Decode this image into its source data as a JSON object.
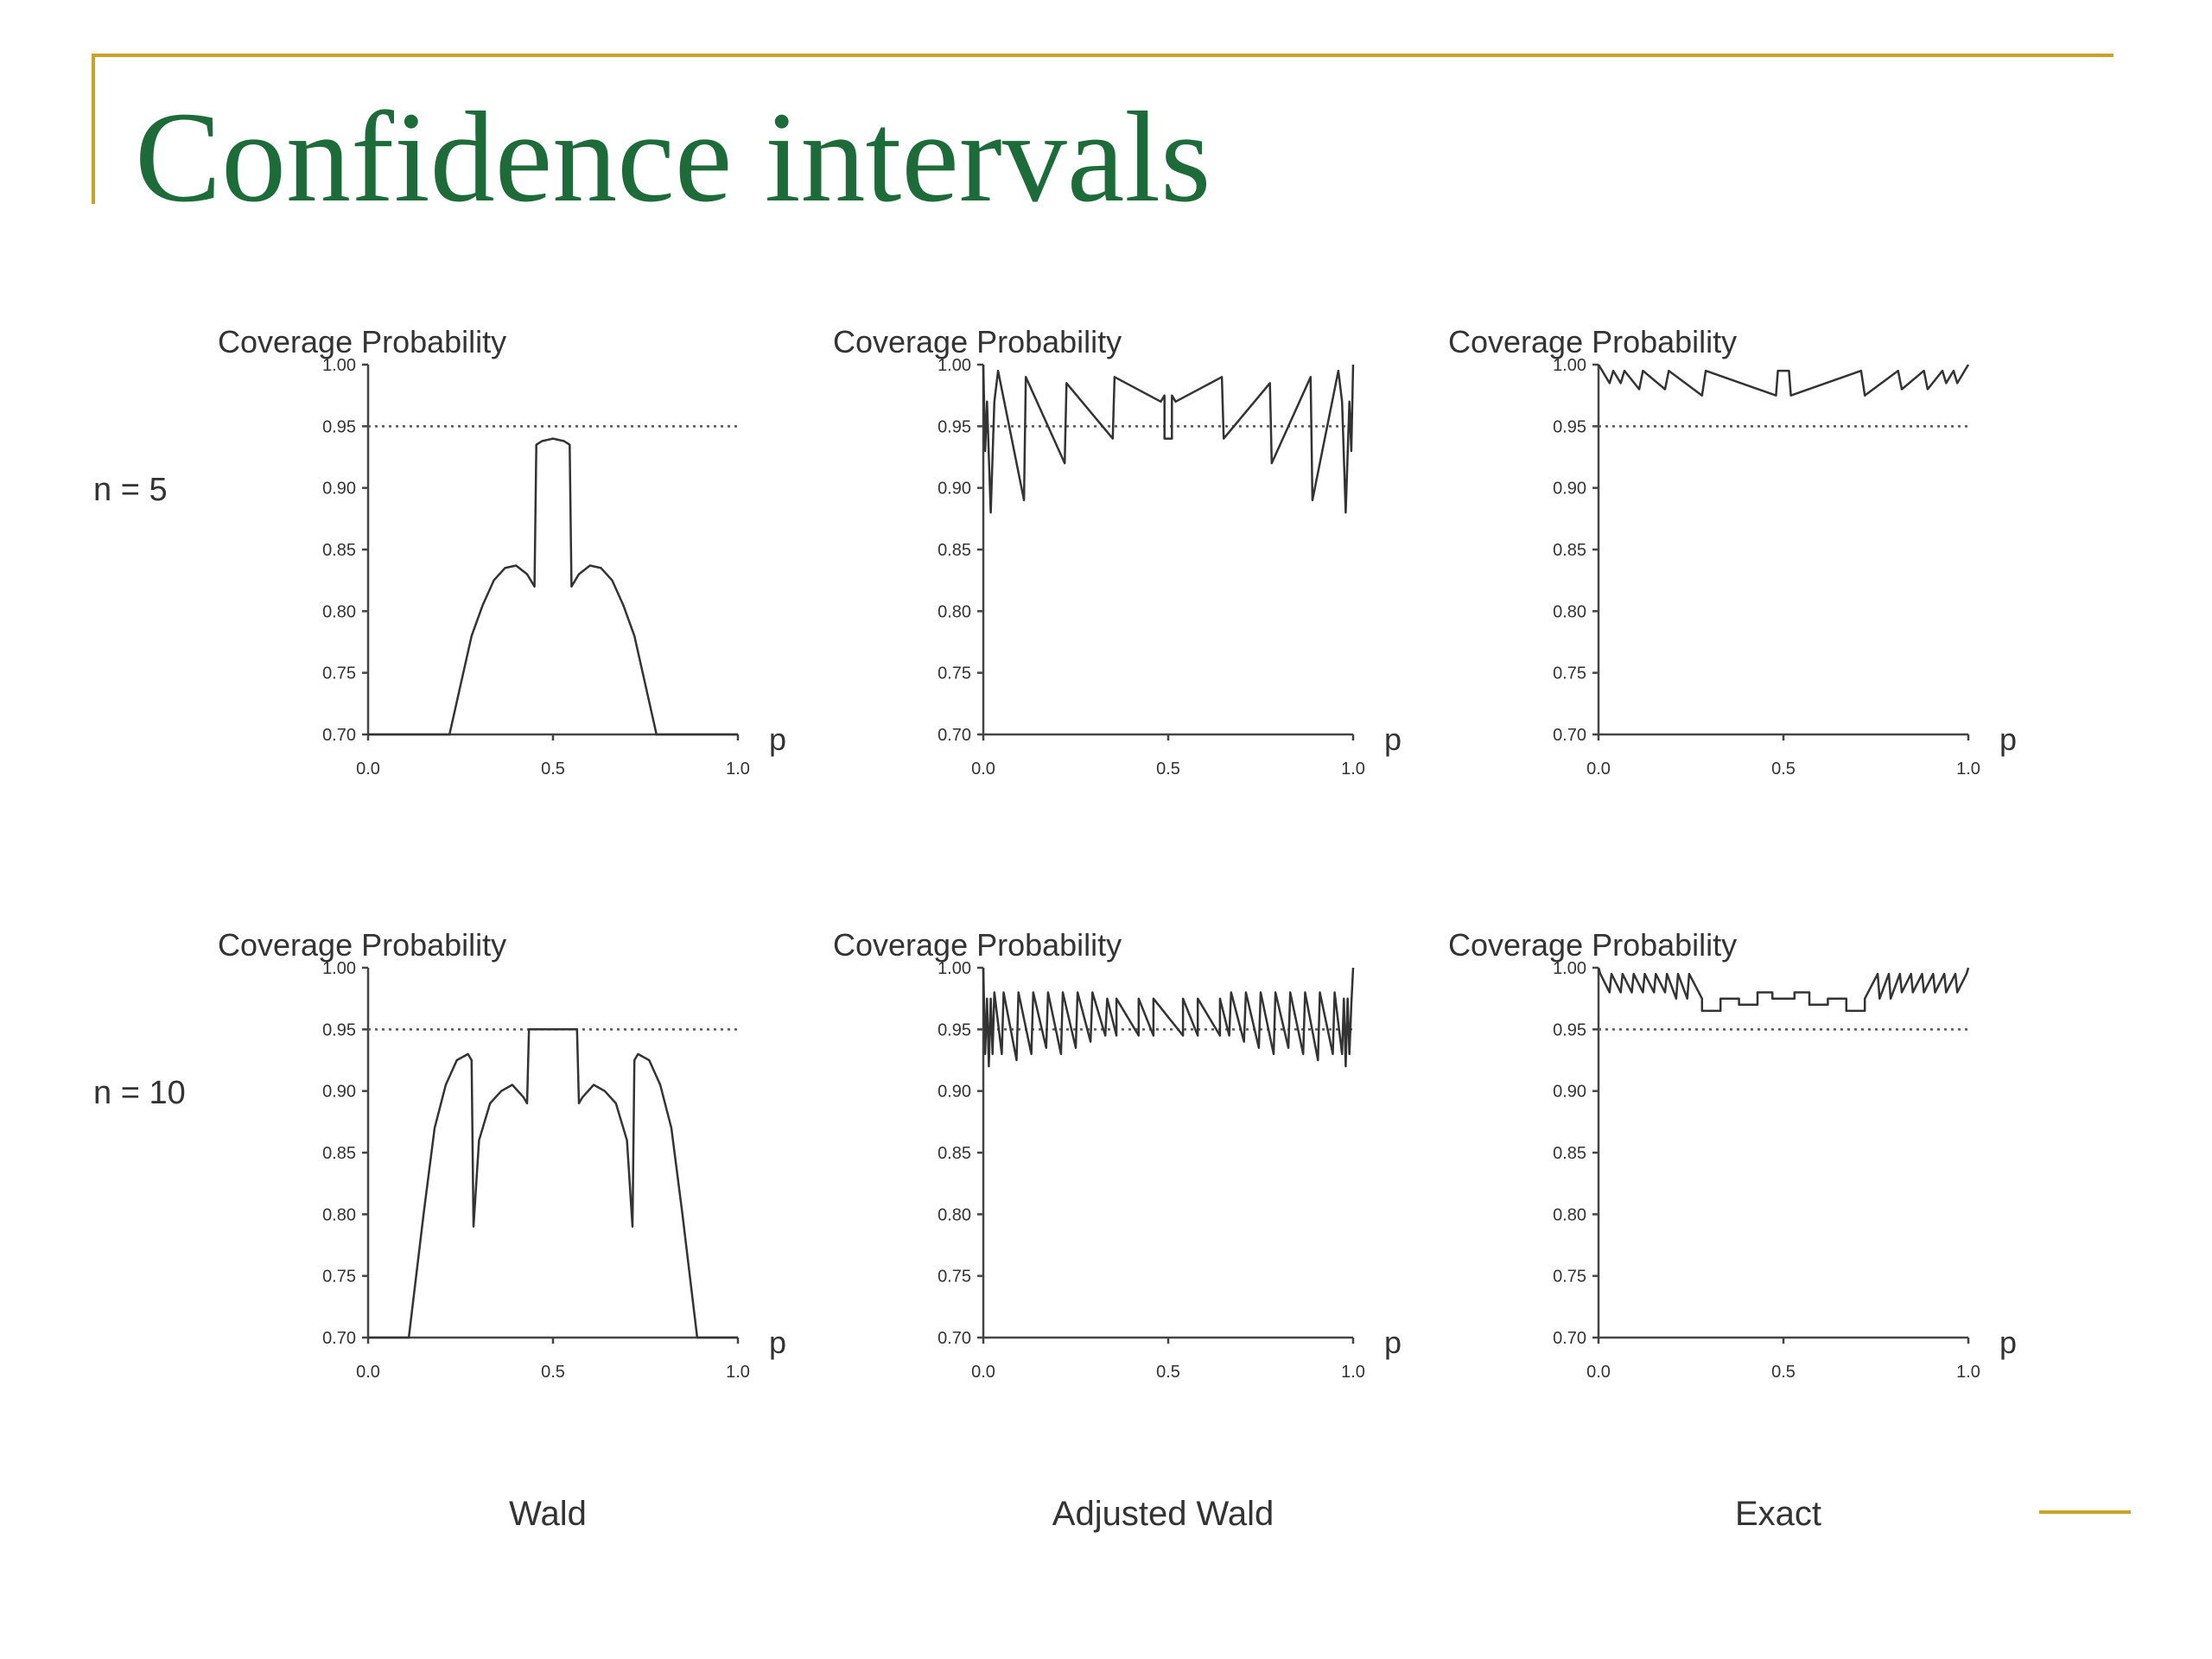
{
  "title": "Confidence intervals",
  "row_labels": [
    "n = 5",
    "n = 10"
  ],
  "column_labels": [
    "Wald",
    "Adjusted Wald",
    "Exact"
  ],
  "colors": {
    "title": "#1e6b3a",
    "rule": "#c9a227",
    "ink": "#333333"
  },
  "chart_data": [
    {
      "type": "line",
      "row": "n = 5",
      "column": "Wald",
      "title": "Coverage Probability",
      "xlabel": "p",
      "xlim": [
        0,
        1
      ],
      "ylim": [
        0.7,
        1.0
      ],
      "xticks": [
        "0.0",
        "0.5",
        "1.0"
      ],
      "yticks": [
        "1.00",
        "0.95",
        "0.90",
        "0.85",
        "0.80",
        "0.75",
        "0.70"
      ],
      "reference_line": 0.95,
      "x": [
        0.0,
        0.22,
        0.25,
        0.28,
        0.31,
        0.34,
        0.37,
        0.4,
        0.43,
        0.45,
        0.455,
        0.47,
        0.5,
        0.53,
        0.545,
        0.55,
        0.57,
        0.6,
        0.63,
        0.66,
        0.69,
        0.72,
        0.75,
        0.78,
        1.0
      ],
      "y": [
        0.7,
        0.7,
        0.74,
        0.78,
        0.805,
        0.825,
        0.835,
        0.837,
        0.83,
        0.82,
        0.935,
        0.938,
        0.94,
        0.938,
        0.935,
        0.82,
        0.83,
        0.837,
        0.835,
        0.825,
        0.805,
        0.78,
        0.74,
        0.7,
        0.7
      ]
    },
    {
      "type": "line",
      "row": "n = 5",
      "column": "Adjusted Wald",
      "title": "Coverage Probability",
      "xlabel": "p",
      "xlim": [
        0,
        1
      ],
      "ylim": [
        0.7,
        1.0
      ],
      "xticks": [
        "0.0",
        "0.5",
        "1.0"
      ],
      "yticks": [
        "1.00",
        "0.95",
        "0.90",
        "0.85",
        "0.80",
        "0.75",
        "0.70"
      ],
      "reference_line": 0.95,
      "x": [
        0.0,
        0.005,
        0.01,
        0.02,
        0.03,
        0.04,
        0.11,
        0.115,
        0.22,
        0.225,
        0.35,
        0.355,
        0.48,
        0.49,
        0.49,
        0.51,
        0.51,
        0.52,
        0.645,
        0.65,
        0.775,
        0.78,
        0.885,
        0.89,
        0.96,
        0.97,
        0.98,
        0.99,
        0.995,
        1.0
      ],
      "y": [
        1.0,
        0.93,
        0.97,
        0.88,
        0.97,
        0.995,
        0.89,
        0.99,
        0.92,
        0.985,
        0.94,
        0.99,
        0.97,
        0.975,
        0.94,
        0.94,
        0.975,
        0.97,
        0.99,
        0.94,
        0.985,
        0.92,
        0.99,
        0.89,
        0.995,
        0.97,
        0.88,
        0.97,
        0.93,
        1.0
      ]
    },
    {
      "type": "line",
      "row": "n = 5",
      "column": "Exact",
      "title": "Coverage Probability",
      "xlabel": "p",
      "xlim": [
        0,
        1
      ],
      "ylim": [
        0.7,
        1.0
      ],
      "xticks": [
        "0.0",
        "0.5",
        "1.0"
      ],
      "yticks": [
        "1.00",
        "0.95",
        "0.90",
        "0.85",
        "0.80",
        "0.75",
        "0.70"
      ],
      "reference_line": 0.95,
      "x": [
        0.0,
        0.01,
        0.03,
        0.04,
        0.06,
        0.07,
        0.11,
        0.12,
        0.18,
        0.19,
        0.28,
        0.29,
        0.48,
        0.485,
        0.515,
        0.52,
        0.71,
        0.72,
        0.81,
        0.82,
        0.88,
        0.89,
        0.93,
        0.94,
        0.96,
        0.97,
        0.99,
        1.0
      ],
      "y": [
        1.0,
        0.995,
        0.985,
        0.995,
        0.985,
        0.995,
        0.98,
        0.995,
        0.98,
        0.995,
        0.975,
        0.995,
        0.975,
        0.995,
        0.995,
        0.975,
        0.995,
        0.975,
        0.995,
        0.98,
        0.995,
        0.98,
        0.995,
        0.985,
        0.995,
        0.985,
        0.995,
        1.0
      ]
    },
    {
      "type": "line",
      "row": "n = 10",
      "column": "Wald",
      "title": "Coverage Probability",
      "xlabel": "p",
      "xlim": [
        0,
        1
      ],
      "ylim": [
        0.7,
        1.0
      ],
      "xticks": [
        "0.0",
        "0.5",
        "1.0"
      ],
      "yticks": [
        "1.00",
        "0.95",
        "0.90",
        "0.85",
        "0.80",
        "0.75",
        "0.70"
      ],
      "reference_line": 0.95,
      "x": [
        0.0,
        0.11,
        0.15,
        0.18,
        0.21,
        0.24,
        0.27,
        0.28,
        0.285,
        0.3,
        0.33,
        0.36,
        0.39,
        0.42,
        0.43,
        0.435,
        0.46,
        0.5,
        0.54,
        0.565,
        0.57,
        0.58,
        0.61,
        0.64,
        0.67,
        0.7,
        0.715,
        0.72,
        0.73,
        0.76,
        0.79,
        0.82,
        0.85,
        0.89,
        1.0
      ],
      "y": [
        0.7,
        0.7,
        0.8,
        0.87,
        0.905,
        0.925,
        0.93,
        0.925,
        0.79,
        0.86,
        0.89,
        0.9,
        0.905,
        0.895,
        0.89,
        0.95,
        0.95,
        0.95,
        0.95,
        0.95,
        0.89,
        0.895,
        0.905,
        0.9,
        0.89,
        0.86,
        0.79,
        0.925,
        0.93,
        0.925,
        0.905,
        0.87,
        0.8,
        0.7,
        0.7
      ]
    },
    {
      "type": "line",
      "row": "n = 10",
      "column": "Adjusted Wald",
      "title": "Coverage Probability",
      "xlabel": "p",
      "xlim": [
        0,
        1
      ],
      "ylim": [
        0.7,
        1.0
      ],
      "xticks": [
        "0.0",
        "0.5",
        "1.0"
      ],
      "yticks": [
        "1.00",
        "0.95",
        "0.90",
        "0.85",
        "0.80",
        "0.75",
        "0.70"
      ],
      "reference_line": 0.95,
      "x": [
        0.0,
        0.005,
        0.01,
        0.015,
        0.02,
        0.025,
        0.03,
        0.05,
        0.055,
        0.09,
        0.095,
        0.13,
        0.135,
        0.17,
        0.175,
        0.21,
        0.215,
        0.25,
        0.255,
        0.29,
        0.295,
        0.33,
        0.335,
        0.36,
        0.36,
        0.42,
        0.42,
        0.46,
        0.46,
        0.54,
        0.54,
        0.58,
        0.58,
        0.64,
        0.64,
        0.665,
        0.67,
        0.705,
        0.71,
        0.745,
        0.75,
        0.785,
        0.79,
        0.825,
        0.83,
        0.865,
        0.87,
        0.905,
        0.91,
        0.945,
        0.95,
        0.97,
        0.975,
        0.98,
        0.985,
        0.99,
        0.995,
        1.0
      ],
      "y": [
        1.0,
        0.93,
        0.975,
        0.92,
        0.975,
        0.93,
        0.98,
        0.93,
        0.98,
        0.925,
        0.98,
        0.93,
        0.98,
        0.935,
        0.98,
        0.93,
        0.98,
        0.935,
        0.98,
        0.94,
        0.98,
        0.945,
        0.975,
        0.945,
        0.975,
        0.945,
        0.975,
        0.945,
        0.975,
        0.945,
        0.975,
        0.945,
        0.975,
        0.945,
        0.975,
        0.945,
        0.98,
        0.94,
        0.98,
        0.935,
        0.98,
        0.93,
        0.98,
        0.935,
        0.98,
        0.93,
        0.98,
        0.925,
        0.98,
        0.93,
        0.98,
        0.93,
        0.975,
        0.92,
        0.975,
        0.93,
        0.97,
        1.0
      ]
    },
    {
      "type": "line",
      "row": "n = 10",
      "column": "Exact",
      "title": "Coverage Probability",
      "xlabel": "p",
      "xlim": [
        0,
        1
      ],
      "ylim": [
        0.7,
        1.0
      ],
      "xticks": [
        "0.0",
        "0.5",
        "1.0"
      ],
      "yticks": [
        "1.00",
        "0.95",
        "0.90",
        "0.85",
        "0.80",
        "0.75",
        "0.70"
      ],
      "reference_line": 0.95,
      "x": [
        0.0,
        0.005,
        0.03,
        0.035,
        0.06,
        0.065,
        0.09,
        0.095,
        0.12,
        0.125,
        0.15,
        0.155,
        0.18,
        0.185,
        0.21,
        0.215,
        0.24,
        0.245,
        0.28,
        0.28,
        0.33,
        0.33,
        0.38,
        0.38,
        0.43,
        0.43,
        0.47,
        0.47,
        0.53,
        0.53,
        0.57,
        0.57,
        0.62,
        0.62,
        0.67,
        0.67,
        0.72,
        0.72,
        0.755,
        0.76,
        0.785,
        0.79,
        0.815,
        0.82,
        0.845,
        0.85,
        0.875,
        0.88,
        0.905,
        0.91,
        0.935,
        0.94,
        0.965,
        0.97,
        0.995,
        1.0
      ],
      "y": [
        1.0,
        0.995,
        0.98,
        0.995,
        0.98,
        0.995,
        0.98,
        0.995,
        0.98,
        0.995,
        0.98,
        0.995,
        0.98,
        0.995,
        0.975,
        0.995,
        0.975,
        0.995,
        0.975,
        0.965,
        0.965,
        0.975,
        0.975,
        0.97,
        0.97,
        0.98,
        0.98,
        0.975,
        0.975,
        0.98,
        0.98,
        0.97,
        0.97,
        0.975,
        0.975,
        0.965,
        0.965,
        0.975,
        0.995,
        0.975,
        0.995,
        0.975,
        0.995,
        0.98,
        0.995,
        0.98,
        0.995,
        0.98,
        0.995,
        0.98,
        0.995,
        0.98,
        0.995,
        0.98,
        0.995,
        1.0
      ]
    }
  ]
}
